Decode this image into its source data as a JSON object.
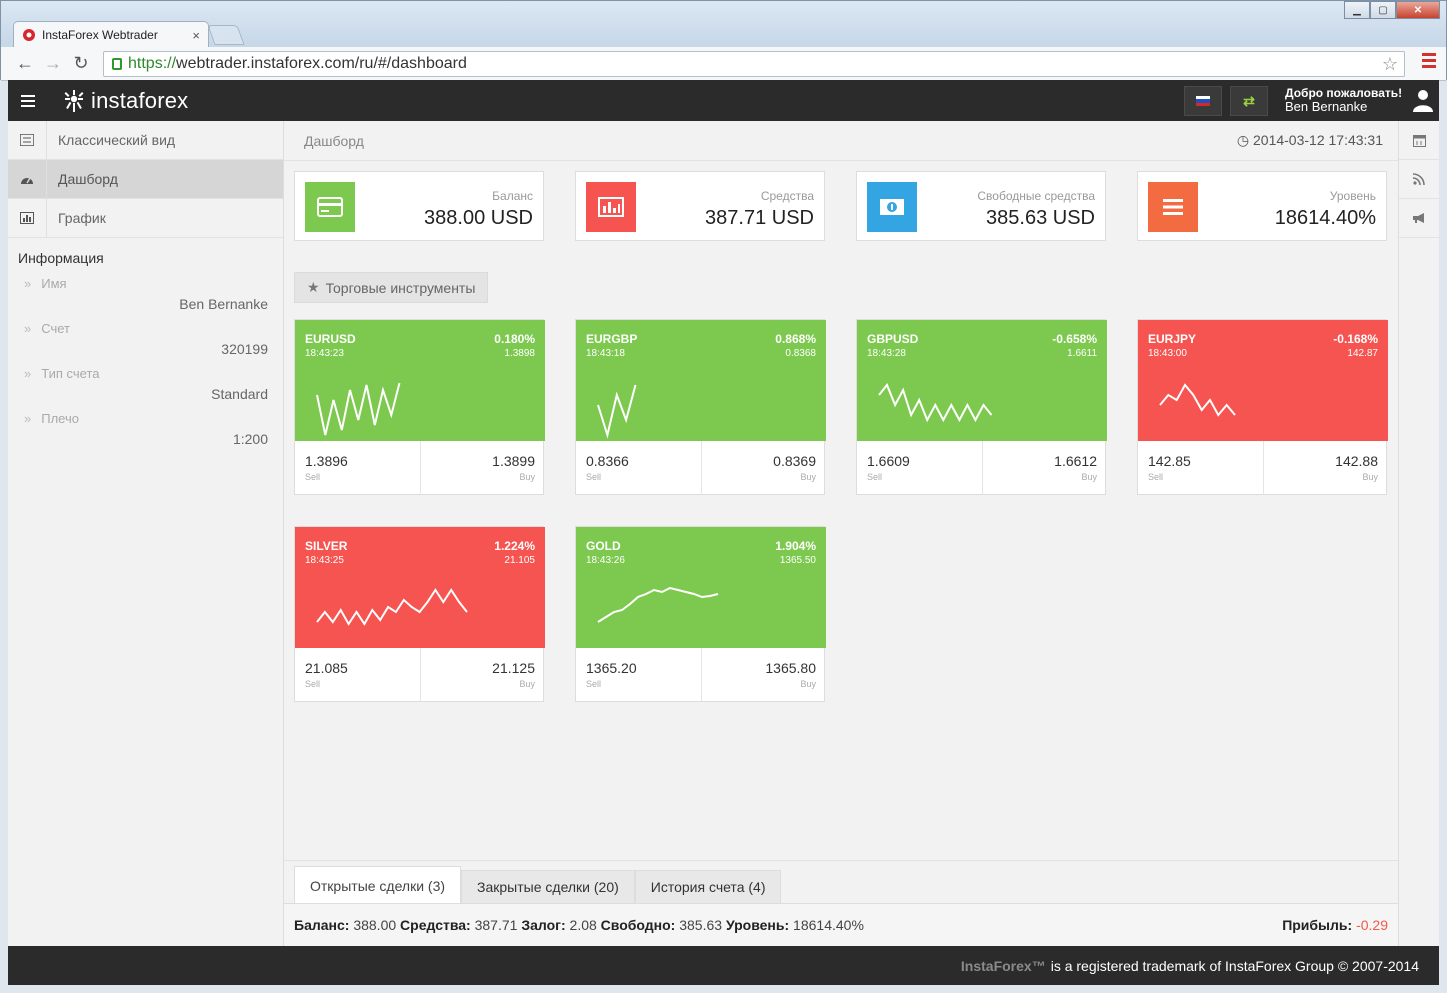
{
  "browser": {
    "tab_title": "InstaForex Webtrader",
    "url_scheme": "https://",
    "url_rest": "webtrader.instaforex.com/ru/#/dashboard"
  },
  "appbar": {
    "logo_text": "instaforex",
    "swap_icon": "⇄",
    "welcome_line": "Добро пожаловать!",
    "user_name": "Ben Bernanke",
    "flag_colors": [
      "#ffffff",
      "#1f4fc4",
      "#d52b1e"
    ]
  },
  "sidebar": {
    "items": [
      {
        "label": "Классический вид",
        "icon": "list-icon"
      },
      {
        "label": "Дашборд",
        "icon": "dashboard-icon"
      },
      {
        "label": "График",
        "icon": "bar-chart-icon"
      }
    ],
    "info_title": "Информация",
    "info": [
      {
        "key": "Имя",
        "value": "Ben Bernanke"
      },
      {
        "key": "Счет",
        "value": "320199"
      },
      {
        "key": "Тип счета",
        "value": "Standard"
      },
      {
        "key": "Плечо",
        "value": "1:200"
      }
    ]
  },
  "main": {
    "breadcrumb": "Дашборд",
    "datetime": "2014-03-12 17:43:31",
    "stats": [
      {
        "label": "Баланс",
        "value": "388.00 USD",
        "color": "#7dc94f",
        "icon": "card-icon"
      },
      {
        "label": "Средства",
        "value": "387.71 USD",
        "color": "#f55451",
        "icon": "chart-icon"
      },
      {
        "label": "Свободные средства",
        "value": "385.63 USD",
        "color": "#32a5e2",
        "icon": "money-icon"
      },
      {
        "label": "Уровень",
        "value": "18614.40%",
        "color": "#f36b40",
        "icon": "bars-icon"
      }
    ],
    "section_label": "Торговые инструменты",
    "instruments": [
      {
        "symbol": "EURUSD",
        "time": "18:43:23",
        "change": "0.180%",
        "price": "1.3898",
        "sell": "1.3896",
        "buy": "1.3899",
        "trend": "up",
        "spark": [
          20,
          60,
          25,
          55,
          15,
          45,
          10,
          50,
          15,
          40,
          8
        ]
      },
      {
        "symbol": "EURGBP",
        "time": "18:43:18",
        "change": "0.868%",
        "price": "0.8368",
        "sell": "0.8366",
        "buy": "0.8369",
        "trend": "up",
        "spark": [
          30,
          60,
          20,
          45,
          10
        ]
      },
      {
        "symbol": "GBPUSD",
        "time": "18:43:28",
        "change": "-0.658%",
        "price": "1.6611",
        "sell": "1.6609",
        "buy": "1.6612",
        "trend": "up",
        "spark": [
          20,
          10,
          30,
          15,
          40,
          25,
          45,
          30,
          45,
          30,
          45,
          30,
          45,
          30,
          40
        ]
      },
      {
        "symbol": "EURJPY",
        "time": "18:43:00",
        "change": "-0.168%",
        "price": "142.87",
        "sell": "142.85",
        "buy": "142.88",
        "trend": "down",
        "spark": [
          30,
          20,
          25,
          10,
          20,
          35,
          25,
          40,
          30,
          40
        ]
      },
      {
        "symbol": "SILVER",
        "time": "18:43:25",
        "change": "1.224%",
        "price": "21.105",
        "sell": "21.085",
        "buy": "21.125",
        "trend": "down",
        "spark": [
          40,
          30,
          40,
          28,
          42,
          30,
          42,
          28,
          38,
          25,
          30,
          18,
          25,
          30,
          20,
          8,
          20,
          8,
          20,
          30
        ]
      },
      {
        "symbol": "GOLD",
        "time": "18:43:26",
        "change": "1.904%",
        "price": "1365.50",
        "sell": "1365.20",
        "buy": "1365.80",
        "trend": "up",
        "spark": [
          40,
          35,
          30,
          28,
          22,
          15,
          12,
          8,
          10,
          6,
          8,
          10,
          12,
          15,
          14,
          12
        ]
      }
    ],
    "sell_label": "Sell",
    "buy_label": "Buy",
    "tabs": [
      {
        "label": "Открытые сделки (3)"
      },
      {
        "label": "Закрытые сделки (20)"
      },
      {
        "label": "История счета (4)"
      }
    ],
    "summary": {
      "balance_label": "Баланс:",
      "balance": "388.00",
      "equity_label": "Средства:",
      "equity": "387.71",
      "margin_label": "Залог:",
      "margin": "2.08",
      "free_label": "Свободно:",
      "free": "385.63",
      "level_label": "Уровень:",
      "level": "18614.40%",
      "profit_label": "Прибыль:",
      "profit": "-0.29"
    }
  },
  "footer": {
    "brand": "InstaForex™",
    "text": "is a registered trademark of InstaForex Group © 2007-2014"
  }
}
